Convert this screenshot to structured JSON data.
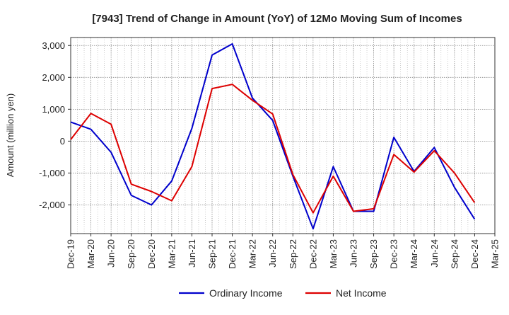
{
  "chart_data": {
    "type": "line",
    "title": "[7943]  Trend of Change in Amount (YoY) of 12Mo Moving Sum of Incomes",
    "xlabel": "",
    "ylabel": "Amount (million yen)",
    "ylim": [
      -2900,
      3250
    ],
    "yticks": [
      3000,
      2000,
      1000,
      0,
      -1000,
      -2000
    ],
    "ytick_labels": [
      "3,000",
      "2,000",
      "1,000",
      "0",
      "-1,000",
      "-2,000"
    ],
    "grid": true,
    "legend_position": "bottom-center",
    "categories": [
      "Dec-19",
      "Mar-20",
      "Jun-20",
      "Sep-20",
      "Dec-20",
      "Mar-21",
      "Jun-21",
      "Sep-21",
      "Dec-21",
      "Mar-22",
      "Jun-22",
      "Sep-22",
      "Dec-22",
      "Mar-23",
      "Jun-23",
      "Sep-23",
      "Dec-23",
      "Mar-24",
      "Jun-24",
      "Sep-24",
      "Dec-24",
      "Mar-25"
    ],
    "series": [
      {
        "name": "Ordinary Income",
        "color": "#0000cc",
        "values": [
          600,
          370,
          -350,
          -1700,
          -2000,
          -1250,
          400,
          2700,
          3050,
          1350,
          650,
          -1100,
          -2750,
          -800,
          -2200,
          -2200,
          120,
          -950,
          -200,
          -1450,
          -2450,
          null
        ]
      },
      {
        "name": "Net Income",
        "color": "#dd0000",
        "values": [
          50,
          870,
          530,
          -1350,
          -1580,
          -1870,
          -800,
          1650,
          1780,
          1280,
          850,
          -1050,
          -2250,
          -1100,
          -2200,
          -2120,
          -420,
          -970,
          -300,
          -1000,
          -1930,
          null
        ]
      }
    ]
  }
}
